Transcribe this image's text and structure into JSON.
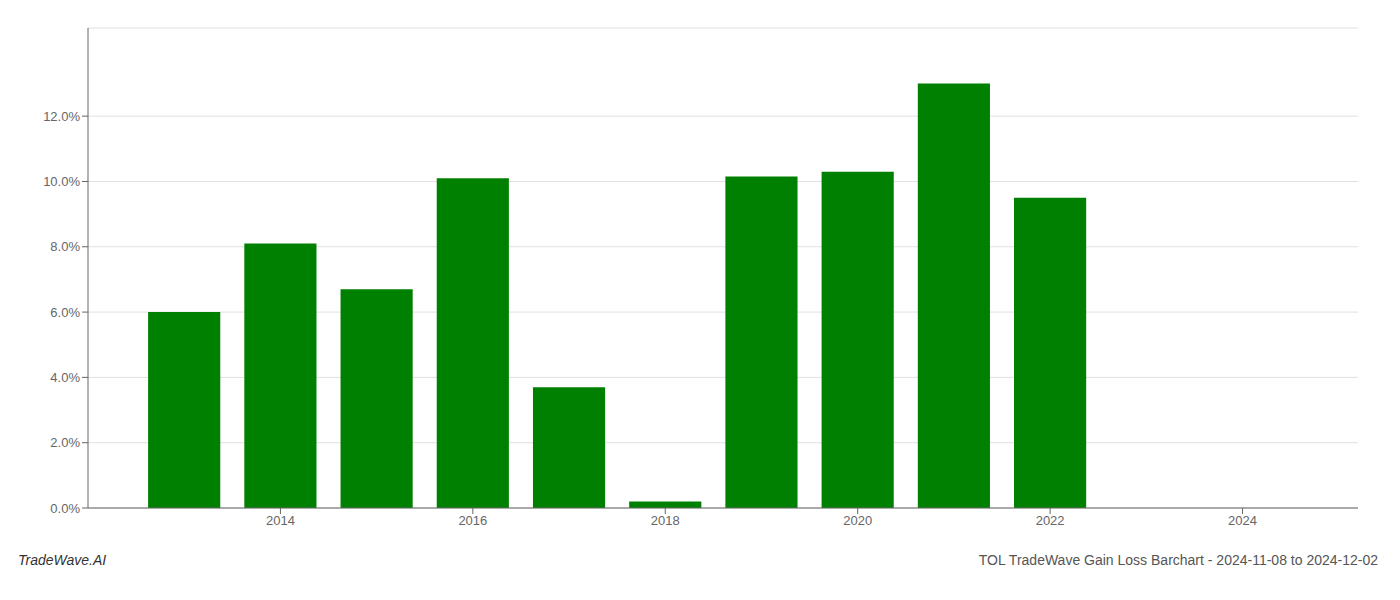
{
  "chart_data": {
    "type": "bar",
    "x": [
      2013,
      2014,
      2015,
      2016,
      2017,
      2018,
      2019,
      2020,
      2021,
      2022
    ],
    "values": [
      0.06,
      0.081,
      0.067,
      0.101,
      0.037,
      0.002,
      0.1015,
      0.103,
      0.13,
      0.095
    ],
    "color": "#008000",
    "xlim": [
      2012.0,
      2025.2
    ],
    "xticks": [
      2014,
      2016,
      2018,
      2020,
      2022,
      2024
    ],
    "ylim": [
      0,
      0.147
    ],
    "yticks": [
      {
        "value": 0.0,
        "label": "0.0%"
      },
      {
        "value": 0.02,
        "label": "2.0%"
      },
      {
        "value": 0.04,
        "label": "4.0%"
      },
      {
        "value": 0.06,
        "label": "6.0%"
      },
      {
        "value": 0.08,
        "label": "8.0%"
      },
      {
        "value": 0.1,
        "label": "10.0%"
      },
      {
        "value": 0.12,
        "label": "12.0%"
      }
    ],
    "grid": true,
    "annotations": [
      "TradeWave.AI",
      "TOL TradeWave Gain Loss Barchart - 2024-11-08 to 2024-12-02"
    ]
  }
}
